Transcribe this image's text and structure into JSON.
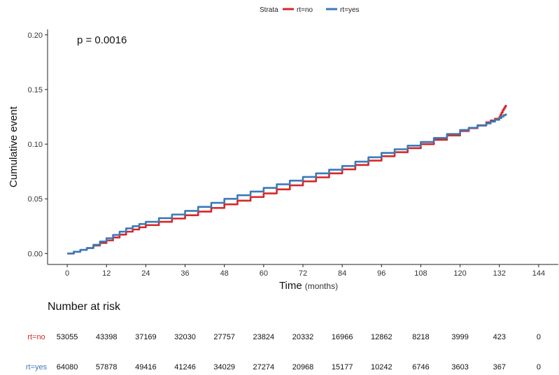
{
  "chart_data": {
    "type": "line",
    "xlabel": "Time",
    "xlabel_unit": "(months)",
    "ylabel": "Cumulative event",
    "xlim": [
      -6,
      150
    ],
    "ylim": [
      -0.01,
      0.205
    ],
    "x_ticks": [
      0,
      12,
      24,
      36,
      48,
      60,
      72,
      84,
      96,
      108,
      120,
      132,
      144
    ],
    "y_ticks": [
      "0.00",
      "0.05",
      "0.10",
      "0.15",
      "0.20"
    ],
    "grid": false,
    "annotation": "p = 0.0016",
    "legend": {
      "title": "Strata",
      "placement": "top-center"
    },
    "series": [
      {
        "name": "rt=no",
        "color": "#d62728",
        "x": [
          0,
          6,
          12,
          18,
          24,
          36,
          48,
          60,
          72,
          84,
          96,
          108,
          120,
          128,
          132,
          133,
          134
        ],
        "y": [
          0,
          0.005,
          0.012,
          0.02,
          0.026,
          0.035,
          0.045,
          0.055,
          0.066,
          0.077,
          0.089,
          0.1,
          0.112,
          0.12,
          0.125,
          0.131,
          0.136
        ]
      },
      {
        "name": "rt=yes",
        "color": "#3a7ab8",
        "x": [
          0,
          6,
          12,
          18,
          24,
          36,
          48,
          60,
          72,
          84,
          96,
          108,
          120,
          128,
          132,
          134
        ],
        "y": [
          0,
          0.005,
          0.014,
          0.023,
          0.029,
          0.039,
          0.05,
          0.06,
          0.07,
          0.08,
          0.092,
          0.102,
          0.113,
          0.119,
          0.124,
          0.128
        ]
      }
    ],
    "risk_table": {
      "title": "Number at risk",
      "rows": [
        {
          "label": "rt=no",
          "color": "#d62728",
          "values": [
            "53055",
            "43398",
            "37169",
            "32030",
            "27757",
            "23824",
            "20332",
            "16966",
            "12862",
            "8218",
            "3999",
            "423",
            "0"
          ]
        },
        {
          "label": "rt=yes",
          "color": "#3a7ab8",
          "values": [
            "64080",
            "57878",
            "49416",
            "41246",
            "34029",
            "27274",
            "20968",
            "15177",
            "10242",
            "6746",
            "3603",
            "367",
            "0"
          ]
        }
      ]
    }
  }
}
